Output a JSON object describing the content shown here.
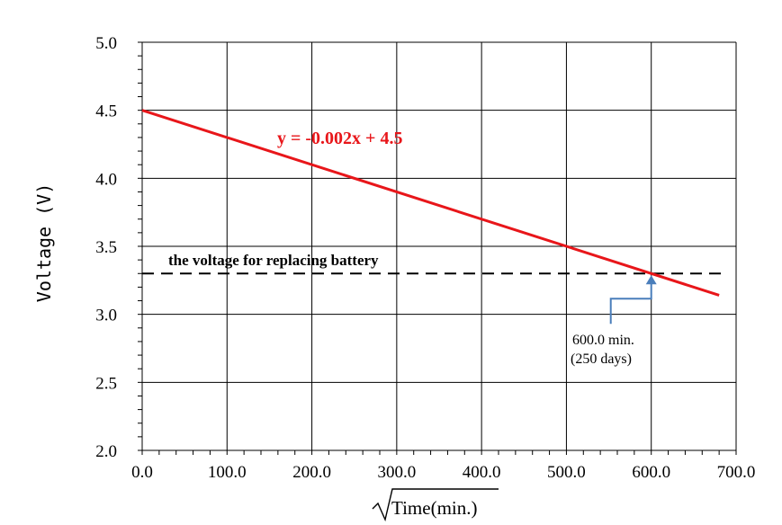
{
  "chart_data": {
    "type": "line",
    "title": "",
    "xlabel": "Time(min.)",
    "ylabel": "Voltage (V)",
    "xlim": [
      0,
      700
    ],
    "ylim": [
      2.0,
      5.0
    ],
    "x_ticks": [
      "0.0",
      "100.0",
      "200.0",
      "300.0",
      "400.0",
      "500.0",
      "600.0",
      "700.0"
    ],
    "y_ticks": [
      "2.0",
      "2.5",
      "3.0",
      "3.5",
      "4.0",
      "4.5",
      "5.0"
    ],
    "grid": true,
    "series": [
      {
        "color": "#e8161a",
        "x": [
          0,
          680
        ],
        "y": [
          4.5,
          3.14
        ]
      }
    ],
    "threshold": {
      "y": 3.3,
      "x_range": [
        0,
        690
      ],
      "style": "dashed",
      "color": "#000000",
      "label": "the voltage for replacing battery"
    },
    "equation_label": "y = -0.002x + 4.5",
    "annotation": {
      "x": 600,
      "y": 3.3,
      "line1": "600.0 min.",
      "line2": "(250 days)",
      "arrow_color": "#4a7ebb"
    }
  }
}
